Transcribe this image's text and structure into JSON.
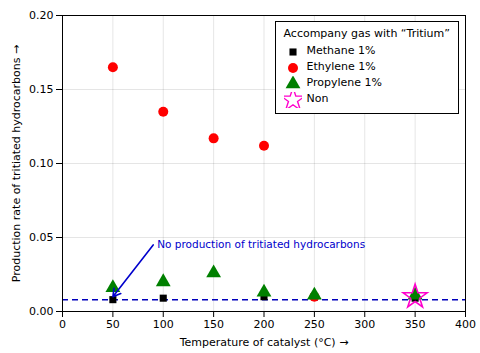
{
  "chart_data": {
    "type": "scatter",
    "xlabel": "Temperature of catalyst (°C)",
    "ylabel": "Production rate of tritiated hydrocarbons",
    "xlim": [
      0,
      400
    ],
    "ylim": [
      0,
      0.2
    ],
    "xticks": [
      0,
      50,
      100,
      150,
      200,
      250,
      300,
      350,
      400
    ],
    "yticks": [
      {
        "value": 0,
        "label": "0.00"
      },
      0.05,
      {
        "value": 0.1,
        "label": "0.10"
      },
      0.15,
      {
        "value": 0.2,
        "label": "0.20"
      }
    ],
    "grid": true,
    "legend": "upper right",
    "legend_title": "Accompany gas with “Tritium”",
    "series": [
      {
        "name": "Methane 1%",
        "color": "#000000",
        "marker": "square",
        "x": [
          50,
          100,
          200,
          250,
          350
        ],
        "values": [
          0.008,
          0.009,
          0.01,
          0.01,
          0.009
        ]
      },
      {
        "name": "Ethylene 1%",
        "color": "#ff0000",
        "marker": "circle",
        "x": [
          50,
          100,
          150,
          200,
          250
        ],
        "values": [
          0.165,
          0.135,
          0.117,
          0.112,
          0.01
        ]
      },
      {
        "name": "Propylene 1%",
        "color": "#008000",
        "marker": "triangle",
        "x": [
          50,
          100,
          150,
          200,
          250,
          350
        ],
        "values": [
          0.016,
          0.02,
          0.026,
          0.013,
          0.011,
          0.011
        ]
      },
      {
        "name": "Non",
        "color": "#ff00cc",
        "marker": "star",
        "x": [
          350
        ],
        "values": [
          0.01
        ]
      }
    ],
    "hline": {
      "y": 0.008,
      "color": "#0000bb",
      "line_style": "dashed"
    },
    "annotations": [
      {
        "text": "No production of tritiated hydrocarbons",
        "x": 90,
        "y": 0.045,
        "arrow_x": 50,
        "arrow_y": 0.01,
        "color": "#0000cc"
      }
    ]
  }
}
